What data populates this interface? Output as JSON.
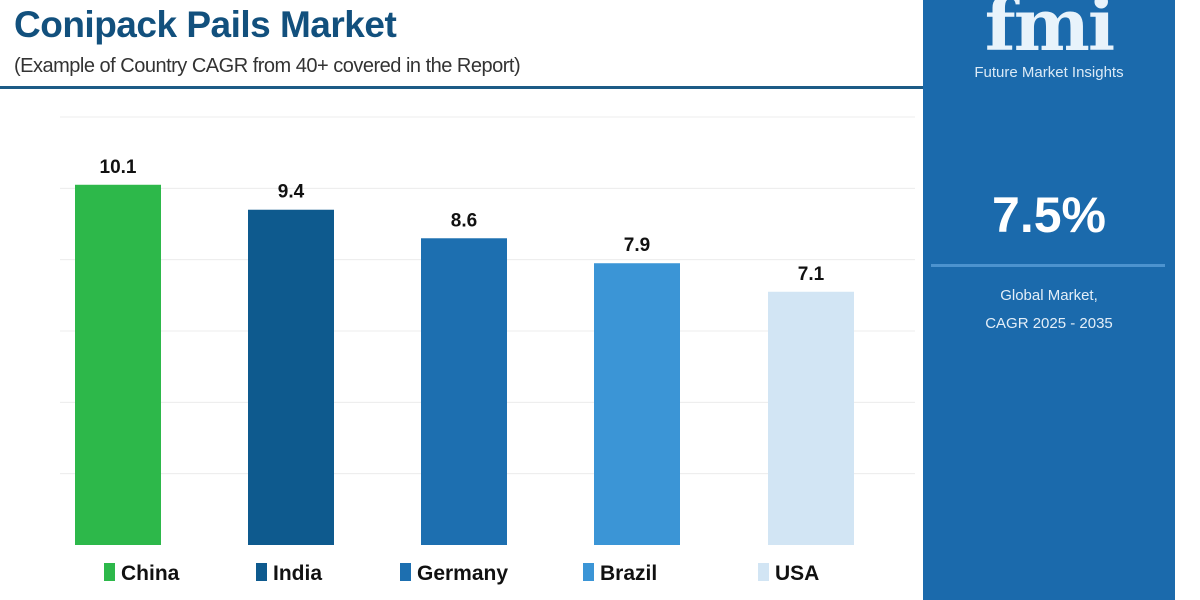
{
  "chart_data": {
    "type": "bar",
    "title": "Conipack Pails Market",
    "subtitle": "(Example of Country CAGR from 40+ covered in the Report)",
    "categories": [
      "China",
      "India",
      "Germany",
      "Brazil",
      "USA"
    ],
    "values": [
      10.1,
      9.4,
      8.6,
      7.9,
      7.1
    ],
    "colors": [
      "#2db84a",
      "#0e5a8e",
      "#1d6fb0",
      "#3b95d6",
      "#d2e5f4"
    ],
    "ylim": [
      0,
      12
    ],
    "grid": true,
    "legend": "bottom",
    "xlabel": "",
    "ylabel": ""
  },
  "panel": {
    "logo_text": "fmi",
    "logo_subtitle": "Future Market Insights",
    "value": "7.5%",
    "caption_line1": "Global Market,",
    "caption_line2": "CAGR 2025 - 2035",
    "color": "#1b6aac"
  }
}
